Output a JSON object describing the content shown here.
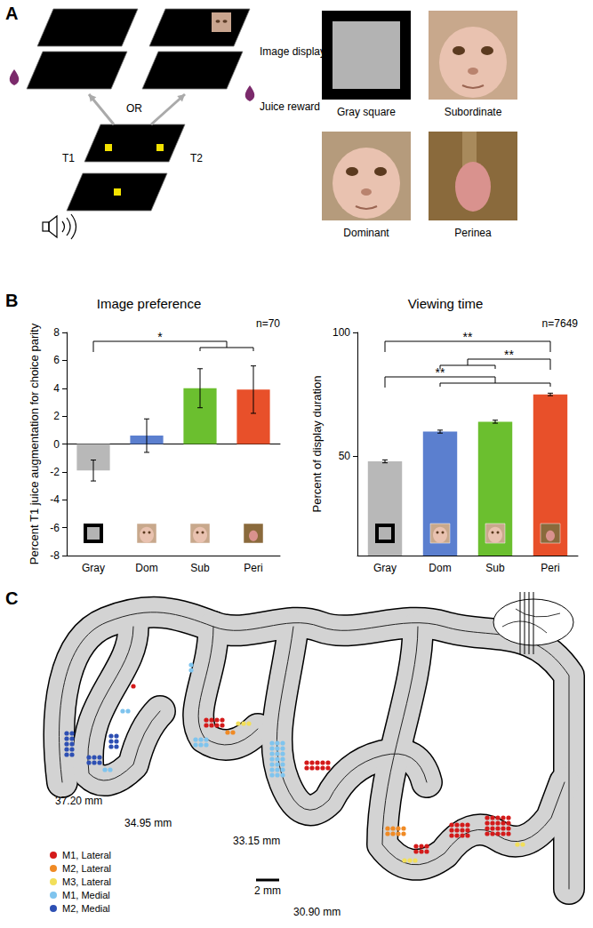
{
  "panel_labels": [
    "A",
    "B",
    "C"
  ],
  "task": {
    "t1": "T1",
    "t2": "T2",
    "or": "OR",
    "image_display": "Image display",
    "juice_reward": "Juice reward"
  },
  "stimuli": [
    "Gray square",
    "Subordinate",
    "Dominant",
    "Perinea"
  ],
  "chart_data": [
    {
      "type": "bar",
      "title": "Image preference",
      "y_label": "Percent T1 juice augmentation for choice parity",
      "categories": [
        "Gray",
        "Dom",
        "Sub",
        "Peri"
      ],
      "values": [
        -1.9,
        0.6,
        4.0,
        3.9
      ],
      "errors": [
        0.75,
        1.2,
        1.4,
        1.7
      ],
      "colors": [
        "#b8b8b8",
        "#5b7fcf",
        "#6bbf2f",
        "#e8502a"
      ],
      "ylim": [
        -8,
        8
      ],
      "yticks": [
        -8,
        -6,
        -4,
        -2,
        0,
        2,
        4,
        6,
        8
      ],
      "annotation": "n=70",
      "significance": [
        {
          "text": "*",
          "from": [
            "Gray"
          ],
          "to": [
            "Sub",
            "Peri"
          ]
        }
      ],
      "grid": false
    },
    {
      "type": "bar",
      "title": "Viewing time",
      "y_label": "Percent of display duration",
      "categories": [
        "Gray",
        "Dom",
        "Sub",
        "Peri"
      ],
      "values": [
        48,
        60,
        64,
        75
      ],
      "errors": [
        0.6,
        0.6,
        0.6,
        0.5
      ],
      "colors": [
        "#b8b8b8",
        "#5b7fcf",
        "#6bbf2f",
        "#e8502a"
      ],
      "ylim": [
        10,
        100
      ],
      "yticks": [
        50,
        100
      ],
      "annotation": "n=7649",
      "significance": [
        {
          "text": "**",
          "from": [
            "Gray"
          ],
          "to": [
            "Peri"
          ]
        },
        {
          "text": "**",
          "from": [
            "Dom",
            "Sub"
          ],
          "to": [
            "Peri"
          ]
        },
        {
          "text": "**",
          "from": [
            "Gray"
          ],
          "to": [
            "Dom",
            "Sub",
            "Peri"
          ]
        }
      ],
      "grid": false
    }
  ],
  "section": {
    "slices": [
      "37.20 mm",
      "34.95 mm",
      "33.15 mm",
      "30.90 mm"
    ],
    "scale_bar": "2 mm",
    "legend": [
      {
        "label": "M1, Lateral",
        "color": "#d41a1a"
      },
      {
        "label": "M2, Lateral",
        "color": "#f08a24"
      },
      {
        "label": "M3, Lateral",
        "color": "#f2df5a"
      },
      {
        "label": "M1, Medial",
        "color": "#7fc4ee"
      },
      {
        "label": "M2, Medial",
        "color": "#2d4fb3"
      }
    ]
  }
}
